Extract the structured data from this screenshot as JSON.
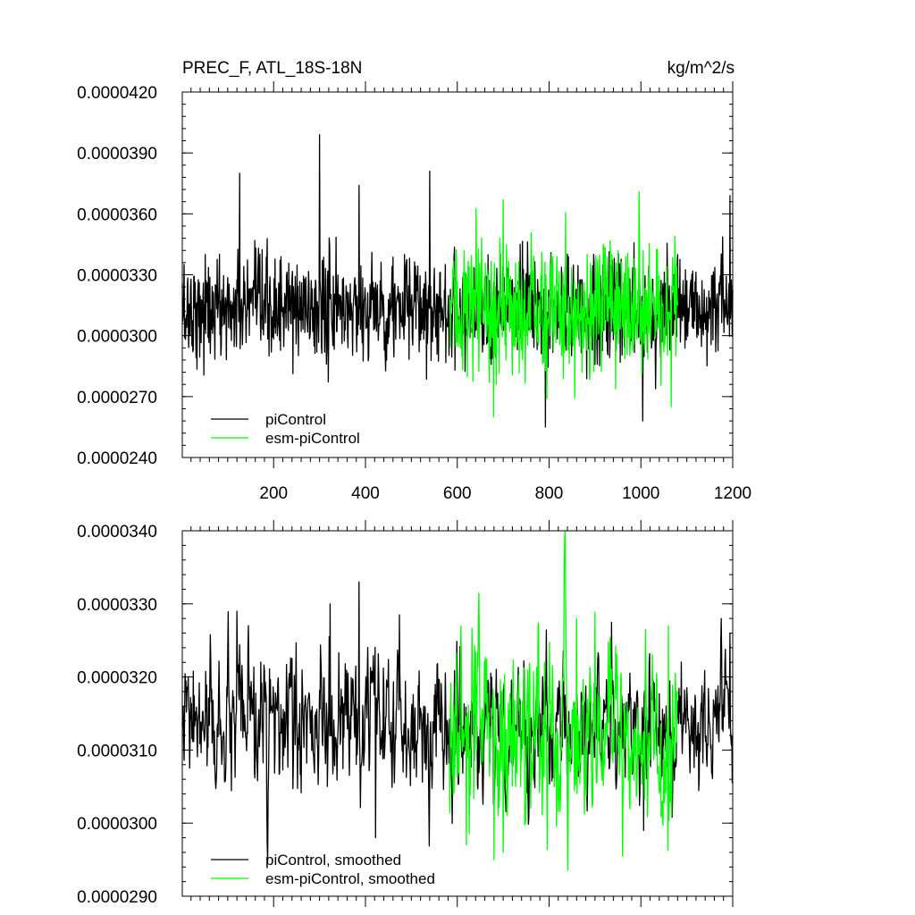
{
  "header": {
    "title_left": "PREC_F, ATL_18S-18N",
    "title_right": "kg/m^2/s"
  },
  "colors": {
    "picontrol": "#000000",
    "esm_picontrol": "#00ff00"
  },
  "chart_data": [
    {
      "type": "line",
      "title": "PREC_F, ATL_18S-18N",
      "units": "kg/m^2/s",
      "xlim": [
        1,
        1200
      ],
      "ylim": [
        2.4e-05,
        4.2e-05
      ],
      "xticks": [
        200,
        400,
        600,
        800,
        1000,
        1200
      ],
      "yticks": [
        "0.0000240",
        "0.0000270",
        "0.0000300",
        "0.0000330",
        "0.0000360",
        "0.0000390",
        "0.0000420"
      ],
      "ytick_values": [
        2.4e-05,
        2.7e-05,
        3e-05,
        3.3e-05,
        3.6e-05,
        3.9e-05,
        4.2e-05
      ],
      "legend_position": "bottom-left",
      "grid": false,
      "series": [
        {
          "name": "piControl",
          "color": "#000000",
          "x_range": [
            1,
            1200
          ],
          "baseline": 3.13e-05,
          "noise_sd": 1.3e-06,
          "spikes": [
            {
              "x": 126,
              "y": 3.8e-05
            },
            {
              "x": 300,
              "y": 3.99e-05
            },
            {
              "x": 386,
              "y": 3.74e-05
            },
            {
              "x": 540,
              "y": 3.81e-05
            },
            {
              "x": 792,
              "y": 2.55e-05
            },
            {
              "x": 1004,
              "y": 2.58e-05
            },
            {
              "x": 1194,
              "y": 3.69e-05
            }
          ]
        },
        {
          "name": "esm-piControl",
          "color": "#00ff00",
          "x_range": [
            583,
            1080
          ],
          "baseline": 3.13e-05,
          "noise_sd": 1.6e-06,
          "spikes": [
            {
              "x": 700,
              "y": 3.67e-05
            },
            {
              "x": 679,
              "y": 2.6e-05
            },
            {
              "x": 996,
              "y": 3.71e-05
            },
            {
              "x": 1066,
              "y": 2.65e-05
            }
          ]
        }
      ]
    },
    {
      "type": "line",
      "xlim": [
        1,
        1200
      ],
      "ylim": [
        2.9e-05,
        3.4e-05
      ],
      "xticks": [
        200,
        400,
        600,
        800,
        1000,
        1200
      ],
      "yticks": [
        "0.0000290",
        "0.0000300",
        "0.0000310",
        "0.0000320",
        "0.0000330",
        "0.0000340"
      ],
      "ytick_values": [
        2.9e-05,
        3e-05,
        3.1e-05,
        3.2e-05,
        3.3e-05,
        3.4e-05
      ],
      "legend_position": "bottom-left",
      "grid": false,
      "series": [
        {
          "name": "piControl, smoothed",
          "color": "#000000",
          "x_range": [
            1,
            1200
          ],
          "baseline": 3.13e-05,
          "noise_sd": 4.5e-07,
          "spikes": [
            {
              "x": 120,
              "y": 3.29e-05
            },
            {
              "x": 323,
              "y": 3.3e-05
            },
            {
              "x": 386,
              "y": 3.33e-05
            },
            {
              "x": 422,
              "y": 2.98e-05
            },
            {
              "x": 1006,
              "y": 2.99e-05
            },
            {
              "x": 1175,
              "y": 3.28e-05
            },
            {
              "x": 1194,
              "y": 3.26e-05
            }
          ]
        },
        {
          "name": "esm-piControl, smoothed",
          "color": "#00ff00",
          "x_range": [
            583,
            1080
          ],
          "baseline": 3.12e-05,
          "noise_sd": 6e-07,
          "spikes": [
            {
              "x": 620,
              "y": 2.97e-05
            },
            {
              "x": 680,
              "y": 2.95e-05
            },
            {
              "x": 700,
              "y": 2.96e-05
            },
            {
              "x": 860,
              "y": 3.28e-05
            },
            {
              "x": 1060,
              "y": 3.27e-05
            }
          ]
        }
      ]
    }
  ]
}
